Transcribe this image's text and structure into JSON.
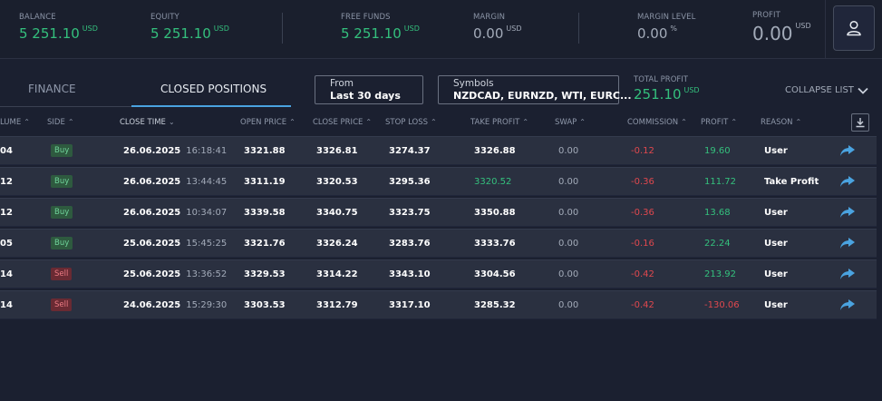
{
  "header": {
    "balance": {
      "label": "BALANCE",
      "value": "5 251.10",
      "currency": "USD"
    },
    "equity": {
      "label": "EQUITY",
      "value": "5 251.10",
      "currency": "USD"
    },
    "free_funds": {
      "label": "FREE FUNDS",
      "value": "5 251.10",
      "currency": "USD"
    },
    "margin": {
      "label": "MARGIN",
      "value": "0.00",
      "currency": "USD"
    },
    "margin_level": {
      "label": "MARGIN LEVEL",
      "value": "0.00",
      "unit": "%"
    },
    "profit": {
      "label": "PROFIT",
      "value": "0.00",
      "currency": "USD"
    }
  },
  "tabs": [
    {
      "label": "FINANCE"
    },
    {
      "label": "CLOSED POSITIONS"
    }
  ],
  "filters": {
    "from": {
      "label": "From",
      "value": "Last 30 days"
    },
    "symbols": {
      "label": "Symbols",
      "value": "NZDCAD, EURNZD, WTI, EURC..."
    }
  },
  "total_profit": {
    "label": "TOTAL PROFIT",
    "value": "251.10",
    "currency": "USD"
  },
  "collapse_label": "COLLAPSE LIST",
  "columns": [
    "LUME",
    "SIDE",
    "CLOSE TIME",
    "OPEN PRICE",
    "CLOSE PRICE",
    "STOP LOSS",
    "TAKE PROFIT",
    "SWAP",
    "COMMISSION",
    "PROFIT",
    "REASON"
  ],
  "rows": [
    {
      "volume": "04",
      "side": "Buy",
      "close_date": "26.06.2025",
      "close_time": "16:18:41",
      "open_price": "3321.88",
      "close_price": "3326.81",
      "stop_loss": "3274.37",
      "take_profit": "3326.88",
      "swap": "0.00",
      "commission": "-0.12",
      "profit": "19.60",
      "reason": "User"
    },
    {
      "volume": "12",
      "side": "Buy",
      "close_date": "26.06.2025",
      "close_time": "13:44:45",
      "open_price": "3311.19",
      "close_price": "3320.53",
      "stop_loss": "3295.36",
      "take_profit": "3320.52",
      "swap": "0.00",
      "commission": "-0.36",
      "profit": "111.72",
      "reason": "Take Profit"
    },
    {
      "volume": "12",
      "side": "Buy",
      "close_date": "26.06.2025",
      "close_time": "10:34:07",
      "open_price": "3339.58",
      "close_price": "3340.75",
      "stop_loss": "3323.75",
      "take_profit": "3350.88",
      "swap": "0.00",
      "commission": "-0.36",
      "profit": "13.68",
      "reason": "User"
    },
    {
      "volume": "05",
      "side": "Buy",
      "close_date": "25.06.2025",
      "close_time": "15:45:25",
      "open_price": "3321.76",
      "close_price": "3326.24",
      "stop_loss": "3283.76",
      "take_profit": "3333.76",
      "swap": "0.00",
      "commission": "-0.16",
      "profit": "22.24",
      "reason": "User"
    },
    {
      "volume": "14",
      "side": "Sell",
      "close_date": "25.06.2025",
      "close_time": "13:36:52",
      "open_price": "3329.53",
      "close_price": "3314.22",
      "stop_loss": "3343.10",
      "take_profit": "3304.56",
      "swap": "0.00",
      "commission": "-0.42",
      "profit": "213.92",
      "reason": "User"
    },
    {
      "volume": "14",
      "side": "Sell",
      "close_date": "24.06.2025",
      "close_time": "15:29:30",
      "open_price": "3303.53",
      "close_price": "3312.79",
      "stop_loss": "3317.10",
      "take_profit": "3285.32",
      "swap": "0.00",
      "commission": "-0.42",
      "profit": "-130.06",
      "reason": "User"
    }
  ],
  "colors": {
    "positive": "#34c07d",
    "negative": "#e0484e",
    "accent": "#4aa3e0"
  }
}
